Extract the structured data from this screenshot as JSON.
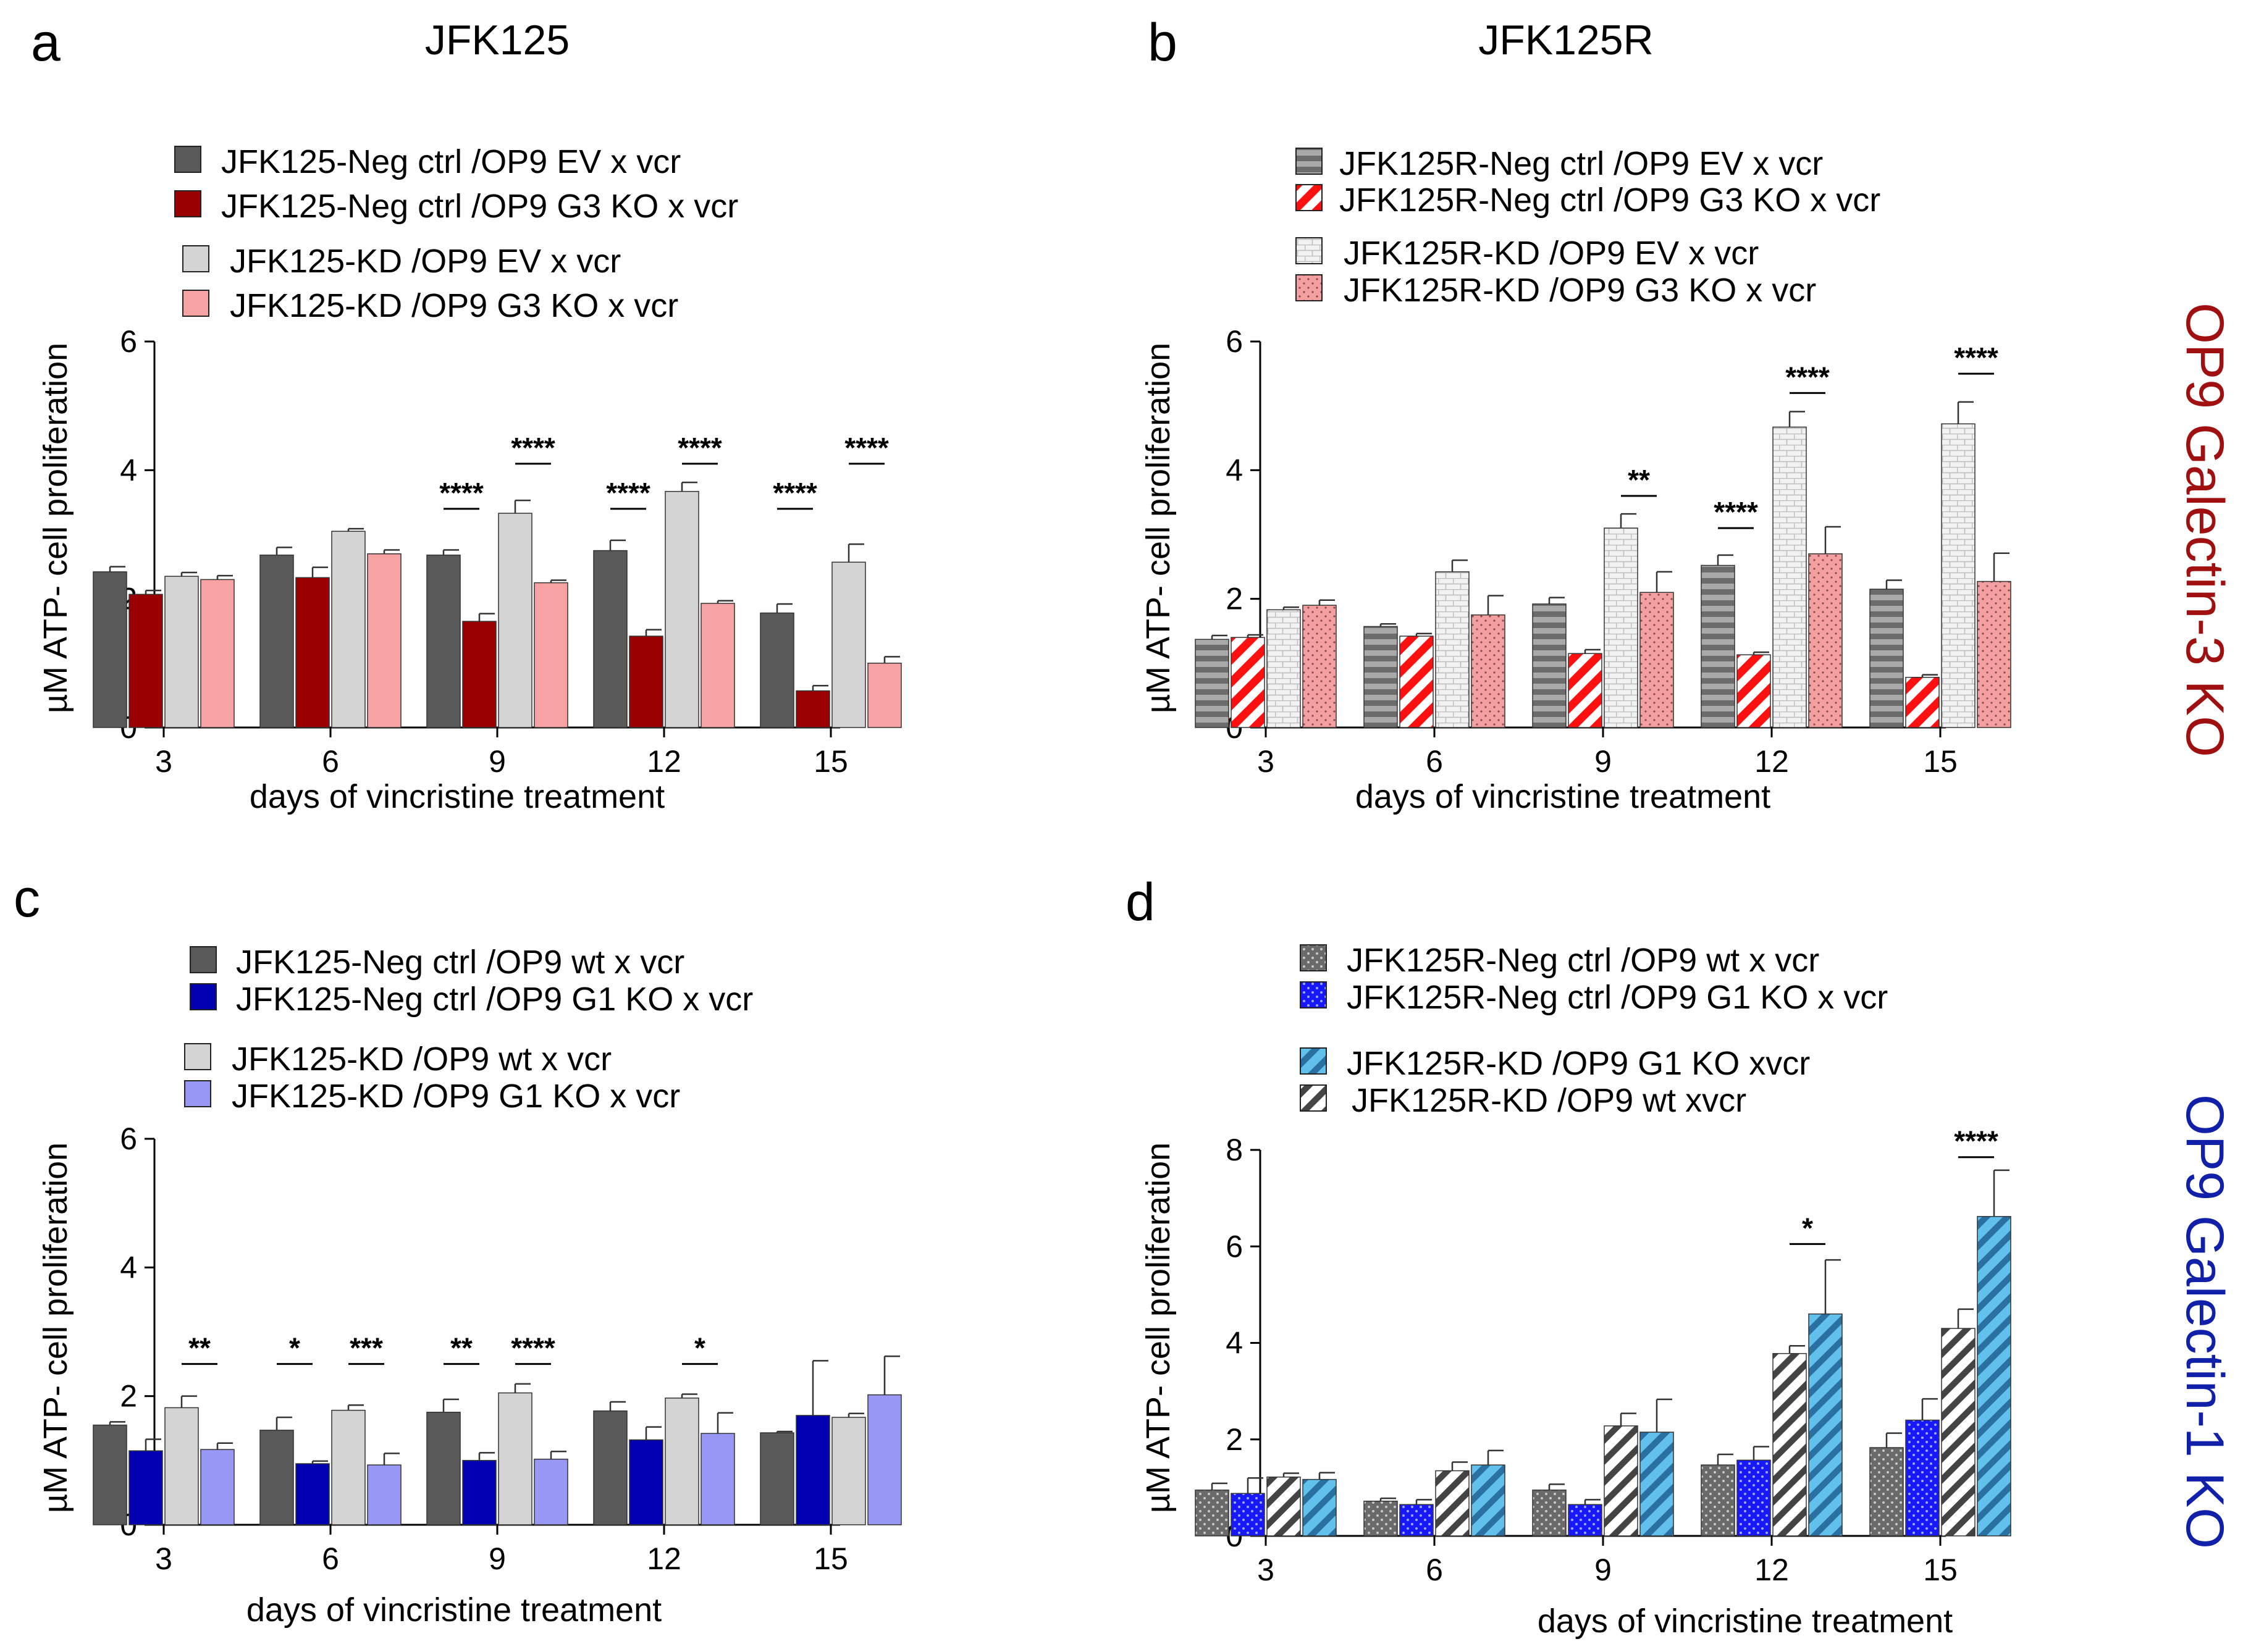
{
  "figure": {
    "side_labels": [
      {
        "text": "OP9 Galectin-3 KO",
        "color": "#a01010"
      },
      {
        "text": "OP9 Galectin-1 KO",
        "color": "#1020a8"
      }
    ]
  },
  "chart_data": [
    {
      "type": "bar",
      "panel": "a",
      "title": "JFK125",
      "xlabel": "days of vincristine treatment",
      "ylabel": "µM ATP- cell proliferation",
      "ylim": [
        0,
        6
      ],
      "yticks": [
        0,
        2,
        4,
        6
      ],
      "categories": [
        "3",
        "6",
        "9",
        "12",
        "15"
      ],
      "series": [
        {
          "name": "JFK125-Neg ctrl /OP9 EV x vcr",
          "color": "#595959",
          "pattern": "solid",
          "values": [
            2.42,
            2.68,
            2.68,
            2.75,
            1.78
          ],
          "errors": [
            0.08,
            0.12,
            0.08,
            0.16,
            0.14
          ]
        },
        {
          "name": "JFK125-Neg ctrl /OP9 G3 KO x vcr",
          "color": "#9b0000",
          "pattern": "solid",
          "values": [
            2.07,
            2.33,
            1.65,
            1.42,
            0.57
          ],
          "errors": [
            0.06,
            0.16,
            0.12,
            0.1,
            0.08
          ]
        },
        {
          "name": "JFK125-KD /OP9 EV x vcr",
          "color": "#d4d4d4",
          "pattern": "solid",
          "values": [
            2.35,
            3.05,
            3.33,
            3.67,
            2.57
          ],
          "errors": [
            0.06,
            0.04,
            0.2,
            0.14,
            0.28
          ]
        },
        {
          "name": "JFK125-KD /OP9 G3 KO x vcr",
          "color": "#f7a3a3",
          "pattern": "solid",
          "values": [
            2.3,
            2.7,
            2.25,
            1.93,
            1.0
          ],
          "errors": [
            0.06,
            0.06,
            0.04,
            0.04,
            0.1
          ]
        }
      ],
      "significance": [
        {
          "category": "9",
          "from": 0,
          "to": 1,
          "label": "****",
          "y": 3.4
        },
        {
          "category": "9",
          "from": 2,
          "to": 3,
          "label": "****",
          "y": 4.1
        },
        {
          "category": "12",
          "from": 0,
          "to": 1,
          "label": "****",
          "y": 3.4
        },
        {
          "category": "12",
          "from": 2,
          "to": 3,
          "label": "****",
          "y": 4.1
        },
        {
          "category": "15",
          "from": 0,
          "to": 1,
          "label": "****",
          "y": 3.4
        },
        {
          "category": "15",
          "from": 2,
          "to": 3,
          "label": "****",
          "y": 4.1
        }
      ]
    },
    {
      "type": "bar",
      "panel": "b",
      "title": "JFK125R",
      "xlabel": "days of vincristine treatment",
      "ylabel": "µM ATP- cell proliferation",
      "ylim": [
        0,
        6
      ],
      "yticks": [
        0,
        2,
        4,
        6
      ],
      "categories": [
        "3",
        "6",
        "9",
        "12",
        "15"
      ],
      "series": [
        {
          "name": "JFK125R-Neg ctrl /OP9 EV x vcr",
          "color": "#707070",
          "pattern": "hstripe",
          "values": [
            1.37,
            1.57,
            1.92,
            2.52,
            2.15
          ],
          "errors": [
            0.06,
            0.04,
            0.1,
            0.16,
            0.14
          ]
        },
        {
          "name": "JFK125R-Neg ctrl /OP9 G3 KO x vcr",
          "color": "#ff1010",
          "pattern": "dstripe",
          "values": [
            1.4,
            1.42,
            1.15,
            1.13,
            0.78
          ],
          "errors": [
            0.04,
            0.04,
            0.06,
            0.04,
            0.04
          ]
        },
        {
          "name": "JFK125R-KD /OP9 EV x vcr",
          "color": "#c8c8c8",
          "pattern": "brick",
          "values": [
            1.83,
            2.42,
            3.1,
            4.67,
            4.72
          ],
          "errors": [
            0.04,
            0.18,
            0.22,
            0.24,
            0.34
          ]
        },
        {
          "name": "JFK125R-KD /OP9 G3 KO x vcr",
          "color": "#f4a0a0",
          "pattern": "dots",
          "values": [
            1.9,
            1.75,
            2.1,
            2.7,
            2.27
          ],
          "errors": [
            0.08,
            0.3,
            0.32,
            0.42,
            0.44
          ]
        }
      ],
      "significance": [
        {
          "category": "9",
          "from": 2,
          "to": 3,
          "label": "**",
          "y": 3.6
        },
        {
          "category": "12",
          "from": 0,
          "to": 1,
          "label": "****",
          "y": 3.1
        },
        {
          "category": "12",
          "from": 2,
          "to": 3,
          "label": "****",
          "y": 5.2
        },
        {
          "category": "15",
          "from": 2,
          "to": 3,
          "label": "****",
          "y": 5.5
        }
      ]
    },
    {
      "type": "bar",
      "panel": "c",
      "title": "",
      "xlabel": "days of vincristine treatment",
      "ylabel": "µM ATP- cell proliferation",
      "ylim": [
        0,
        6
      ],
      "yticks": [
        0,
        2,
        4,
        6
      ],
      "categories": [
        "3",
        "6",
        "9",
        "12",
        "15"
      ],
      "series": [
        {
          "name": "JFK125-Neg ctrl /OP9 wt x vcr",
          "color": "#595959",
          "pattern": "solid",
          "values": [
            1.55,
            1.47,
            1.75,
            1.77,
            1.43
          ],
          "errors": [
            0.05,
            0.2,
            0.2,
            0.14,
            0.02
          ]
        },
        {
          "name": "JFK125-Neg ctrl /OP9 G1 KO x vcr",
          "color": "#0000b0",
          "pattern": "solid",
          "values": [
            1.15,
            0.95,
            1.0,
            1.32,
            1.7
          ],
          "errors": [
            0.18,
            0.04,
            0.12,
            0.2,
            0.85
          ]
        },
        {
          "name": "JFK125-KD /OP9 wt x vcr",
          "color": "#d4d4d4",
          "pattern": "solid",
          "values": [
            1.82,
            1.78,
            2.05,
            1.97,
            1.67
          ],
          "errors": [
            0.18,
            0.08,
            0.14,
            0.06,
            0.06
          ]
        },
        {
          "name": "JFK125-KD /OP9 G1 KO x vcr",
          "color": "#9898f4",
          "pattern": "solid",
          "values": [
            1.17,
            0.93,
            1.02,
            1.42,
            2.02
          ],
          "errors": [
            0.1,
            0.18,
            0.12,
            0.32,
            0.6
          ]
        }
      ],
      "significance": [
        {
          "category": "3",
          "from": 2,
          "to": 3,
          "label": "**",
          "y": 2.5
        },
        {
          "category": "6",
          "from": 0,
          "to": 1,
          "label": "*",
          "y": 2.5
        },
        {
          "category": "6",
          "from": 2,
          "to": 3,
          "label": "***",
          "y": 2.5
        },
        {
          "category": "9",
          "from": 0,
          "to": 1,
          "label": "**",
          "y": 2.5
        },
        {
          "category": "9",
          "from": 2,
          "to": 3,
          "label": "****",
          "y": 2.5
        },
        {
          "category": "12",
          "from": 2,
          "to": 3,
          "label": "*",
          "y": 2.5
        }
      ]
    },
    {
      "type": "bar",
      "panel": "d",
      "title": "",
      "xlabel": "days of vincristine treatment",
      "ylabel": "µM ATP- cell proliferation",
      "ylim": [
        0,
        8
      ],
      "yticks": [
        0,
        2,
        4,
        6,
        8
      ],
      "categories": [
        "3",
        "6",
        "9",
        "12",
        "15"
      ],
      "series": [
        {
          "name": "JFK125R-Neg ctrl /OP9 wt x vcr",
          "color": "#6a6a6a",
          "pattern": "dots",
          "values": [
            0.95,
            0.72,
            0.95,
            1.47,
            1.83
          ],
          "errors": [
            0.14,
            0.06,
            0.12,
            0.22,
            0.3
          ]
        },
        {
          "name": "JFK125R-Neg ctrl /OP9 G1 KO x vcr",
          "color": "#1818ff",
          "pattern": "dots",
          "values": [
            0.88,
            0.65,
            0.65,
            1.57,
            2.4
          ],
          "errors": [
            0.32,
            0.1,
            0.1,
            0.28,
            0.44
          ]
        },
        {
          "name": "JFK125R-KD /OP9 wt xvcr",
          "color": "#555555",
          "pattern": "dstripe",
          "values": [
            1.22,
            1.35,
            2.28,
            3.78,
            4.3
          ],
          "errors": [
            0.08,
            0.18,
            0.26,
            0.16,
            0.4
          ]
        },
        {
          "name": "JFK125R-KD /OP9 G1 KO xvcr",
          "color": "#47a8d8",
          "pattern": "dstripe",
          "values": [
            1.17,
            1.47,
            2.15,
            4.6,
            6.62
          ],
          "errors": [
            0.14,
            0.3,
            0.68,
            1.12,
            0.96
          ]
        }
      ],
      "legend_order": [
        0,
        1,
        3,
        2
      ],
      "significance": [
        {
          "category": "12",
          "from": 2,
          "to": 3,
          "label": "*",
          "y": 6.05
        },
        {
          "category": "15",
          "from": 2,
          "to": 3,
          "label": "****",
          "y": 7.85
        }
      ]
    }
  ]
}
